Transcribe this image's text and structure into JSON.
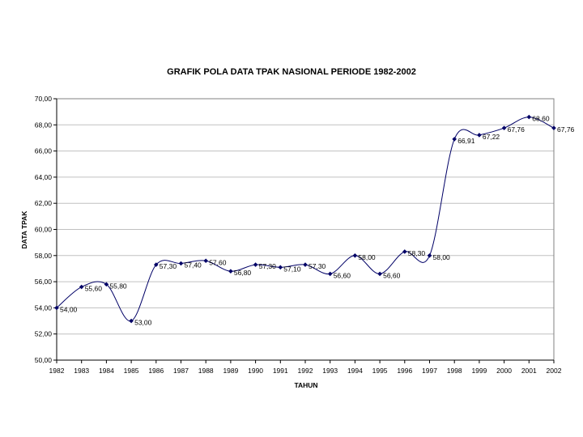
{
  "chart_data": {
    "type": "line",
    "title": "GRAFIK POLA DATA TPAK NASIONAL PERIODE 1982-2002",
    "xlabel": "TAHUN",
    "ylabel": "DATA TPAK",
    "ylim": [
      50,
      70
    ],
    "y_ticks": [
      "50,00",
      "52,00",
      "54,00",
      "56,00",
      "58,00",
      "60,00",
      "62,00",
      "64,00",
      "66,00",
      "68,00",
      "70,00"
    ],
    "categories": [
      "1982",
      "1983",
      "1984",
      "1985",
      "1986",
      "1987",
      "1988",
      "1989",
      "1990",
      "1991",
      "1992",
      "1993",
      "1994",
      "1995",
      "1996",
      "1997",
      "1998",
      "1999",
      "2000",
      "2001",
      "2002"
    ],
    "values": [
      54.0,
      55.6,
      55.8,
      53.0,
      57.3,
      57.4,
      57.6,
      56.8,
      57.3,
      57.1,
      57.3,
      56.6,
      58.0,
      56.6,
      58.3,
      58.0,
      66.91,
      67.22,
      67.76,
      68.6,
      67.76
    ],
    "data_labels": [
      "54,00",
      "55,60",
      "55,80",
      "53,00",
      "57,30",
      "57,40",
      "57,60",
      "56,80",
      "57,30",
      "57,10",
      "57,30",
      "56,60",
      "58,00",
      "56,60",
      "58,30",
      "58,00",
      "66,91",
      "67,22",
      "67,76",
      "68,60",
      "67,76"
    ],
    "grid": true,
    "legend": "none",
    "colors": {
      "series": "#000066",
      "grid": "#c0c0c0"
    }
  }
}
